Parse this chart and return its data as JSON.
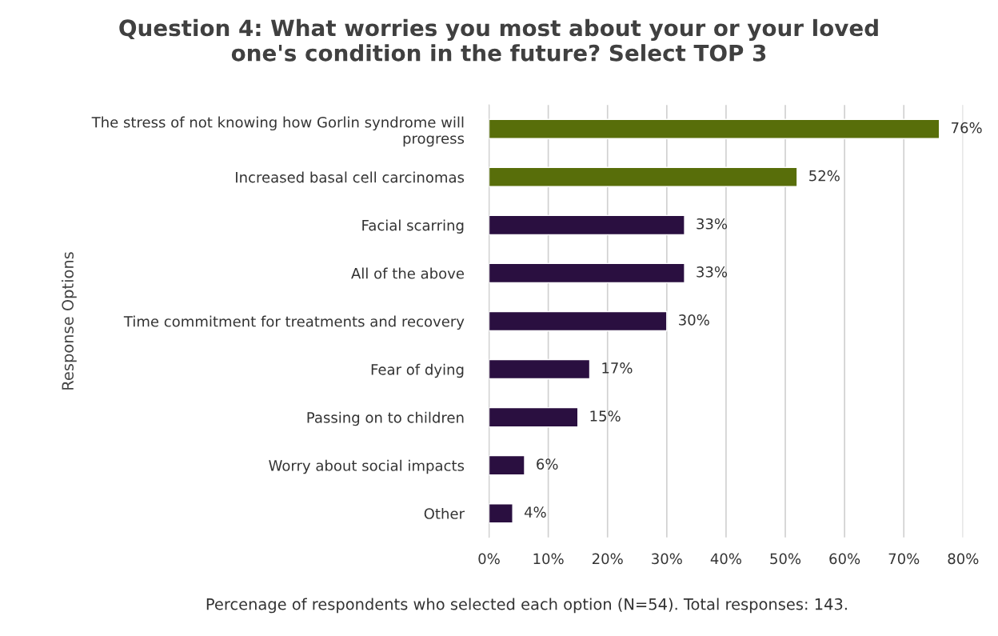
{
  "chart_data": {
    "type": "bar",
    "orientation": "horizontal",
    "title": "Question 4: What worries you most about your or your loved\none's condition in the future? Select TOP 3",
    "ylabel": "Response Options",
    "xlabel": "Percenage of respondents who selected each option (N=54). Total responses: 143.",
    "categories": [
      "The stress of not knowing how Gorlin syndrome will\nprogress",
      "Increased basal cell carcinomas",
      "Facial scarring",
      "All of the above",
      "Time commitment for treatments and recovery",
      "Fear of dying",
      "Passing on to children",
      "Worry about social impacts",
      "Other"
    ],
    "values": [
      76,
      52,
      33,
      33,
      30,
      17,
      15,
      6,
      4
    ],
    "value_labels": [
      "76%",
      "52%",
      "33%",
      "33%",
      "30%",
      "17%",
      "15%",
      "6%",
      "4%"
    ],
    "colors": [
      "#586e0a",
      "#586e0a",
      "#2a0f40",
      "#2a0f40",
      "#2a0f40",
      "#2a0f40",
      "#2a0f40",
      "#2a0f40",
      "#2a0f40"
    ],
    "xlim": [
      0,
      80
    ],
    "xticks": [
      {
        "value": 0,
        "label": "0%"
      },
      {
        "value": 10,
        "label": "10%"
      },
      {
        "value": 20,
        "label": "20%"
      },
      {
        "value": 30,
        "label": "30%"
      },
      {
        "value": 40,
        "label": "40%"
      },
      {
        "value": 50,
        "label": "50%"
      },
      {
        "value": 60,
        "label": "60%"
      },
      {
        "value": 70,
        "label": "70%"
      },
      {
        "value": 80,
        "label": "80%"
      }
    ],
    "grid": "x",
    "legend": false
  }
}
